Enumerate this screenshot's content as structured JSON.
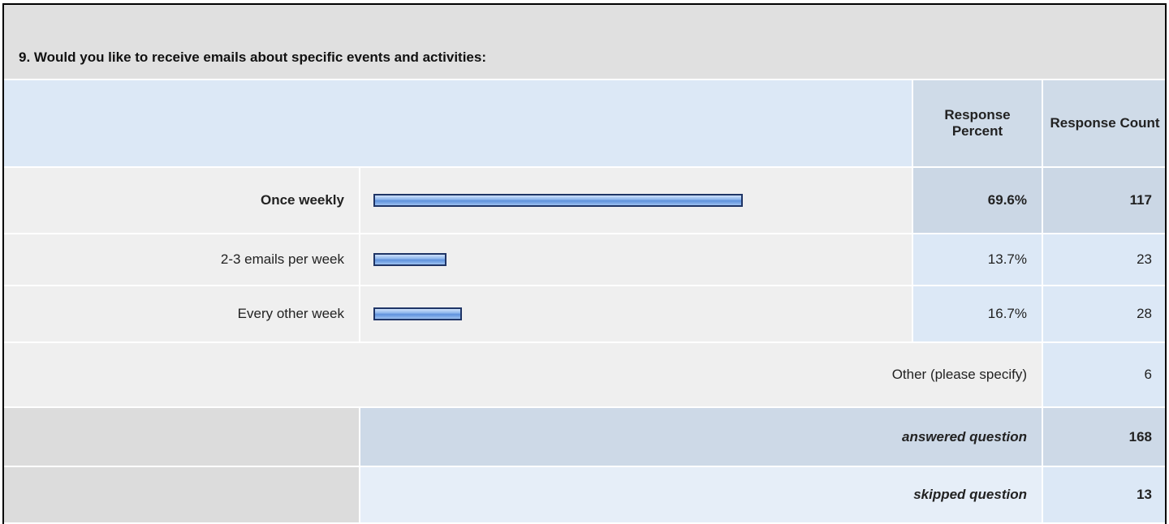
{
  "question": "9. Would you like to receive emails about specific events and activities:",
  "headers": [
    "Response Percent",
    "Response Count"
  ],
  "rows": [
    {
      "label": "Once weekly",
      "percent": 69.6,
      "percent_label": "69.6%",
      "count": 117
    },
    {
      "label": "2-3 emails per week",
      "percent": 13.7,
      "percent_label": "13.7%",
      "count": 23
    },
    {
      "label": "Every other week",
      "percent": 16.7,
      "percent_label": "16.7%",
      "count": 28
    }
  ],
  "other": {
    "label": "Other (please specify)",
    "count": 6
  },
  "summary": [
    {
      "label": "answered question",
      "count": 168
    },
    {
      "label": "skipped question",
      "count": 13
    }
  ]
}
